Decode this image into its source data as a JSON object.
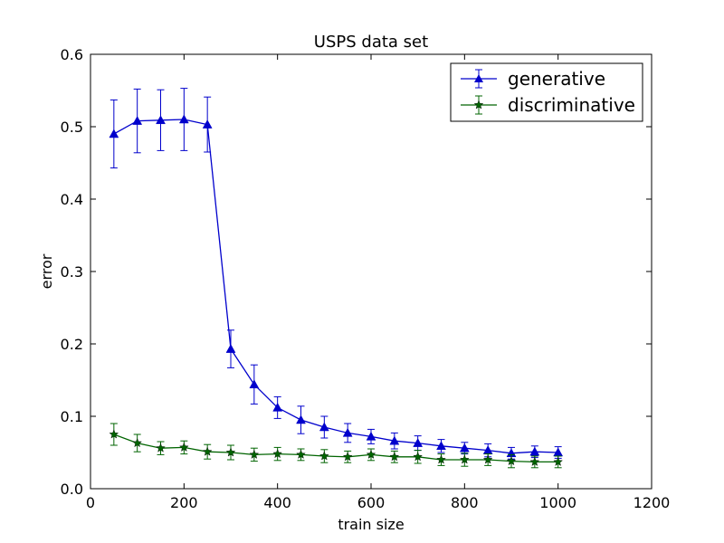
{
  "chart_data": {
    "type": "line",
    "title": "USPS data set",
    "xlabel": "train size",
    "ylabel": "error",
    "xlim": [
      0,
      1200
    ],
    "ylim": [
      0,
      0.6
    ],
    "xticks": [
      "0",
      "200",
      "400",
      "600",
      "800",
      "1000",
      "1200"
    ],
    "yticks": [
      "0.0",
      "0.1",
      "0.2",
      "0.3",
      "0.4",
      "0.5",
      "0.6"
    ],
    "grid": false,
    "legend_position": "top-right",
    "x": [
      50,
      100,
      150,
      200,
      250,
      300,
      350,
      400,
      450,
      500,
      550,
      600,
      650,
      700,
      750,
      800,
      850,
      900,
      950,
      1000
    ],
    "series": [
      {
        "name": "generative",
        "color": "#0000cc",
        "marker": "triangle",
        "values": [
          0.49,
          0.508,
          0.509,
          0.51,
          0.503,
          0.193,
          0.144,
          0.112,
          0.095,
          0.085,
          0.077,
          0.072,
          0.066,
          0.063,
          0.059,
          0.056,
          0.053,
          0.049,
          0.051,
          0.05
        ],
        "errors": [
          0.047,
          0.044,
          0.042,
          0.043,
          0.038,
          0.026,
          0.027,
          0.015,
          0.019,
          0.015,
          0.013,
          0.01,
          0.011,
          0.01,
          0.009,
          0.008,
          0.009,
          0.008,
          0.008,
          0.008
        ]
      },
      {
        "name": "discriminative",
        "color": "#006400",
        "marker": "star",
        "values": [
          0.075,
          0.063,
          0.056,
          0.057,
          0.051,
          0.05,
          0.047,
          0.048,
          0.047,
          0.045,
          0.044,
          0.047,
          0.044,
          0.044,
          0.04,
          0.04,
          0.04,
          0.038,
          0.037,
          0.037
        ],
        "errors": [
          0.015,
          0.012,
          0.009,
          0.009,
          0.01,
          0.01,
          0.009,
          0.009,
          0.008,
          0.009,
          0.008,
          0.008,
          0.008,
          0.009,
          0.008,
          0.009,
          0.008,
          0.009,
          0.008,
          0.008
        ]
      }
    ]
  }
}
